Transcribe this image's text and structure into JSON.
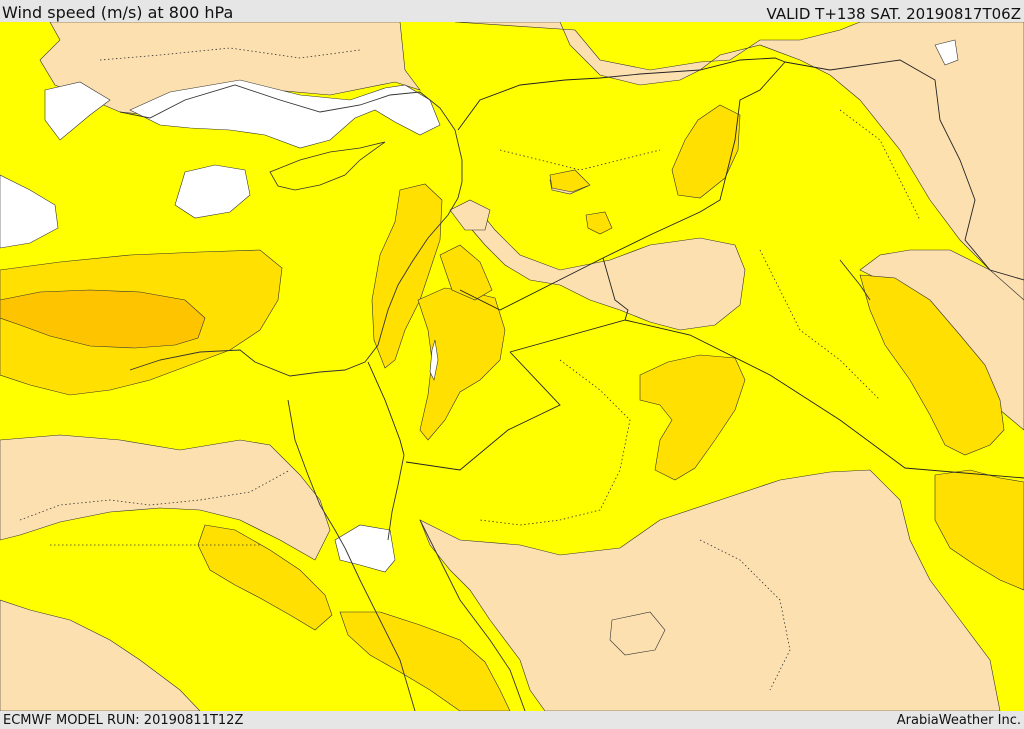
{
  "header": {
    "title": "Wind speed (m/s) at 800 hPa",
    "valid_time": "VALID T+138 SAT. 20190817T06Z"
  },
  "footer": {
    "model_run": "ECMWF MODEL RUN: 20190811T12Z",
    "credit": "ArabiaWeather Inc."
  },
  "colors": {
    "calm": "#ffffff",
    "light": "#fde0b0",
    "moderate": "#ffff00",
    "fresh": "#ffe000",
    "strong": "#ffc400",
    "border": "#333333",
    "coast": "#333333"
  }
}
